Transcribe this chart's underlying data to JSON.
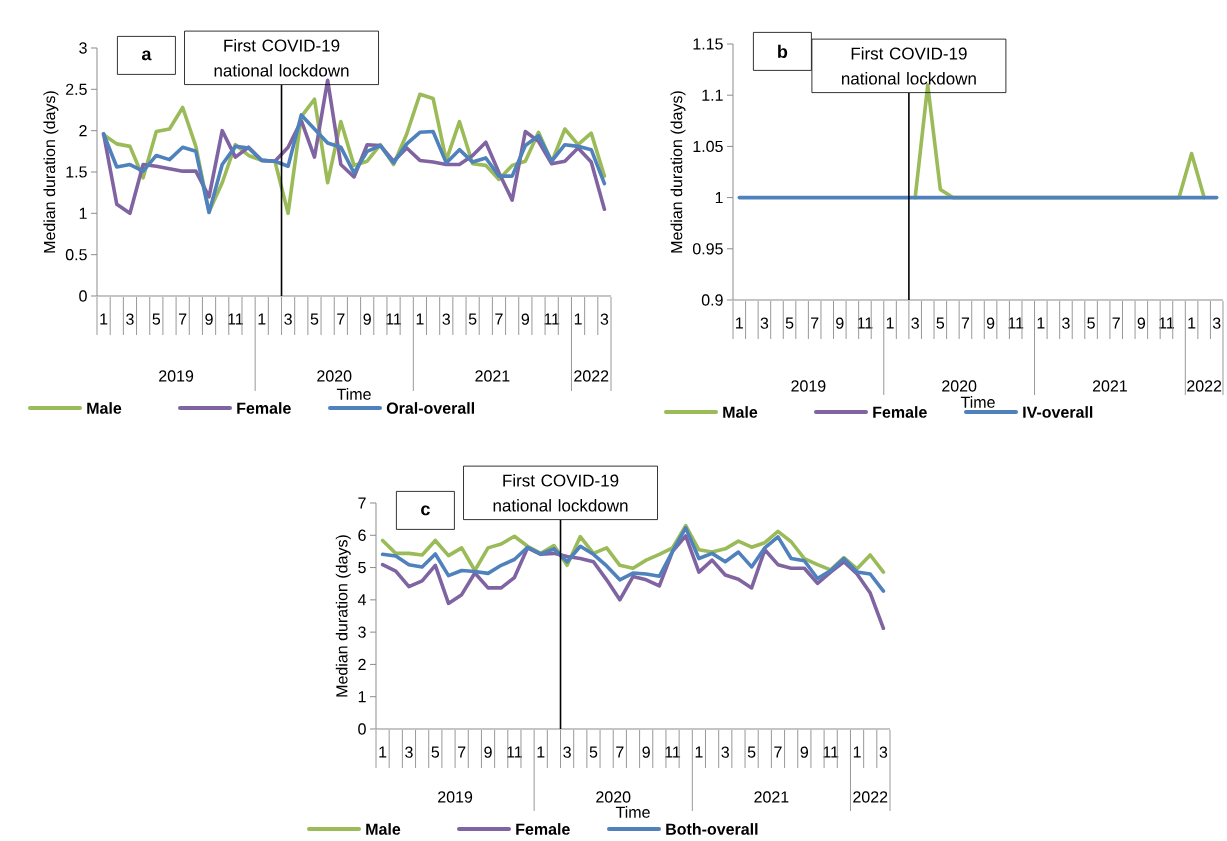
{
  "chart_data": [
    {
      "type": "line",
      "title": "a",
      "xlabel": "Time",
      "ylabel": "Median duration  (days)",
      "categories": [
        "1",
        null,
        "3",
        null,
        "5",
        null,
        "7",
        null,
        "9",
        null,
        "11",
        null,
        "1",
        null,
        "3",
        null,
        "5",
        null,
        "7",
        null,
        "9",
        null,
        "11",
        null,
        "1",
        null,
        "3",
        null,
        "5",
        null,
        "7",
        null,
        "9",
        null,
        "11",
        null,
        "1",
        null,
        "3"
      ],
      "annotations": [
        "First COVID-19 national lockdown",
        "2019",
        "2020",
        "2021",
        "2022"
      ],
      "ylim": [
        0,
        3
      ],
      "yticks": [
        0,
        0.5,
        1,
        1.5,
        2,
        2.5,
        3
      ],
      "legend": "bottom",
      "line_style": "solid",
      "series": [
        {
          "name": "Male",
          "color": "#9bbb59",
          "values": [
            1.95,
            1.84,
            1.81,
            1.43,
            1.99,
            2.02,
            2.28,
            1.81,
            1.02,
            1.37,
            1.83,
            1.7,
            1.64,
            1.63,
            1.0,
            2.17,
            2.38,
            1.37,
            2.11,
            1.58,
            1.63,
            1.83,
            1.59,
            1.96,
            2.44,
            2.39,
            1.64,
            2.11,
            1.6,
            1.58,
            1.41,
            1.58,
            1.63,
            1.98,
            1.62,
            2.02,
            1.83,
            1.97,
            1.45
          ]
        },
        {
          "name": "Female",
          "color": "#8064a2",
          "values": [
            1.96,
            1.11,
            1.0,
            1.59,
            1.57,
            1.54,
            1.51,
            1.51,
            1.2,
            2.0,
            1.68,
            1.8,
            1.64,
            1.63,
            1.8,
            2.12,
            1.68,
            2.61,
            1.59,
            1.44,
            1.83,
            1.82,
            1.63,
            1.79,
            1.64,
            1.62,
            1.59,
            1.59,
            1.7,
            1.86,
            1.49,
            1.16,
            1.99,
            1.87,
            1.6,
            1.63,
            1.79,
            1.62,
            1.05
          ]
        },
        {
          "name": "Oral-overall",
          "color": "#4f81bd",
          "values": [
            1.96,
            1.56,
            1.59,
            1.51,
            1.7,
            1.65,
            1.8,
            1.75,
            1.01,
            1.59,
            1.81,
            1.79,
            1.64,
            1.63,
            1.57,
            2.19,
            2.02,
            1.85,
            1.8,
            1.49,
            1.75,
            1.82,
            1.61,
            1.84,
            1.98,
            1.99,
            1.61,
            1.77,
            1.62,
            1.67,
            1.45,
            1.45,
            1.82,
            1.94,
            1.63,
            1.83,
            1.81,
            1.77,
            1.36
          ]
        }
      ]
    },
    {
      "type": "line",
      "title": "b",
      "xlabel": "Time",
      "ylabel": "Median duration (days)",
      "categories": [
        "1",
        null,
        "3",
        null,
        "5",
        null,
        "7",
        null,
        "9",
        null,
        "11",
        null,
        "1",
        null,
        "3",
        null,
        "5",
        null,
        "7",
        null,
        "9",
        null,
        "11",
        null,
        "1",
        null,
        "3",
        null,
        "5",
        null,
        "7",
        null,
        "9",
        null,
        "11",
        null,
        "1",
        null,
        "3"
      ],
      "annotations": [
        "First COVID-19 national lockdown",
        "2019",
        "2020",
        "2021",
        "2022"
      ],
      "ylim": [
        0.9,
        1.15
      ],
      "yticks": [
        0.9,
        0.95,
        1,
        1.05,
        1.1,
        1.15
      ],
      "legend": "bottom",
      "line_style": "solid",
      "series": [
        {
          "name": "Male",
          "color": "#9bbb59",
          "values": [
            null,
            null,
            null,
            null,
            null,
            null,
            null,
            null,
            null,
            null,
            null,
            null,
            null,
            null,
            1,
            1.11,
            1.008,
            1,
            null,
            null,
            null,
            null,
            null,
            null,
            null,
            null,
            null,
            null,
            null,
            null,
            null,
            null,
            null,
            null,
            null,
            1,
            1.043,
            1,
            null
          ]
        },
        {
          "name": "Female",
          "color": "#8064a2",
          "values": [
            null,
            null,
            null,
            null,
            null,
            null,
            null,
            null,
            null,
            null,
            null,
            null,
            null,
            null,
            null,
            null,
            null,
            null,
            null,
            null,
            null,
            null,
            null,
            null,
            null,
            null,
            null,
            null,
            null,
            null,
            null,
            null,
            null,
            null,
            null,
            null,
            null,
            null,
            null
          ]
        },
        {
          "name": "IV-overall",
          "color": "#4f81bd",
          "values": [
            1,
            1,
            1,
            1,
            1,
            1,
            1,
            1,
            1,
            1,
            1,
            1,
            1,
            1,
            1,
            1,
            1,
            1,
            1,
            1,
            1,
            1,
            1,
            1,
            1,
            1,
            1,
            1,
            1,
            1,
            1,
            1,
            1,
            1,
            1,
            1,
            1,
            1,
            1
          ]
        }
      ]
    },
    {
      "type": "line",
      "title": "c",
      "xlabel": "Time",
      "ylabel": "Median duration (days)",
      "categories": [
        "1",
        null,
        "3",
        null,
        "5",
        null,
        "7",
        null,
        "9",
        null,
        "11",
        null,
        "1",
        null,
        "3",
        null,
        "5",
        null,
        "7",
        null,
        "9",
        null,
        "11",
        null,
        "1",
        null,
        "3",
        null,
        "5",
        null,
        "7",
        null,
        "9",
        null,
        "11",
        null,
        "1",
        null,
        "3"
      ],
      "annotations": [
        "First COVID-19 national lockdown",
        "2019",
        "2020",
        "2021",
        "2022"
      ],
      "ylim": [
        0,
        7
      ],
      "yticks": [
        0,
        1,
        2,
        3,
        4,
        5,
        6,
        7
      ],
      "legend": "bottom",
      "line_style": "solid",
      "series": [
        {
          "name": "Male",
          "color": "#9bbb59",
          "values": [
            5.84,
            5.44,
            5.44,
            5.39,
            5.84,
            5.37,
            5.61,
            4.91,
            5.61,
            5.73,
            5.97,
            5.66,
            5.44,
            5.68,
            5.07,
            5.96,
            5.44,
            5.61,
            5.07,
            4.98,
            5.23,
            5.41,
            5.61,
            6.3,
            5.55,
            5.48,
            5.58,
            5.82,
            5.63,
            5.77,
            6.12,
            5.8,
            5.28,
            5.09,
            4.93,
            5.31,
            4.96,
            5.39,
            4.86
          ]
        },
        {
          "name": "Female",
          "color": "#8064a2",
          "values": [
            5.09,
            4.89,
            4.41,
            4.59,
            5.07,
            3.89,
            4.16,
            4.83,
            4.37,
            4.37,
            4.69,
            5.61,
            5.41,
            5.44,
            5.34,
            5.28,
            5.18,
            4.62,
            4.0,
            4.72,
            4.62,
            4.43,
            5.5,
            5.98,
            4.86,
            5.23,
            4.77,
            4.64,
            4.37,
            5.55,
            5.09,
            4.98,
            4.98,
            4.51,
            4.86,
            5.18,
            4.8,
            4.21,
            3.12
          ]
        },
        {
          "name": "Both-overall",
          "color": "#4f81bd",
          "values": [
            5.41,
            5.36,
            5.09,
            5.02,
            5.42,
            4.75,
            4.91,
            4.88,
            4.82,
            5.07,
            5.25,
            5.63,
            5.42,
            5.58,
            5.18,
            5.66,
            5.41,
            5.05,
            4.62,
            4.83,
            4.8,
            4.73,
            5.5,
            6.23,
            5.28,
            5.44,
            5.18,
            5.48,
            5.02,
            5.61,
            5.95,
            5.28,
            5.21,
            4.66,
            4.91,
            5.28,
            4.86,
            4.8,
            4.27
          ]
        }
      ]
    }
  ]
}
